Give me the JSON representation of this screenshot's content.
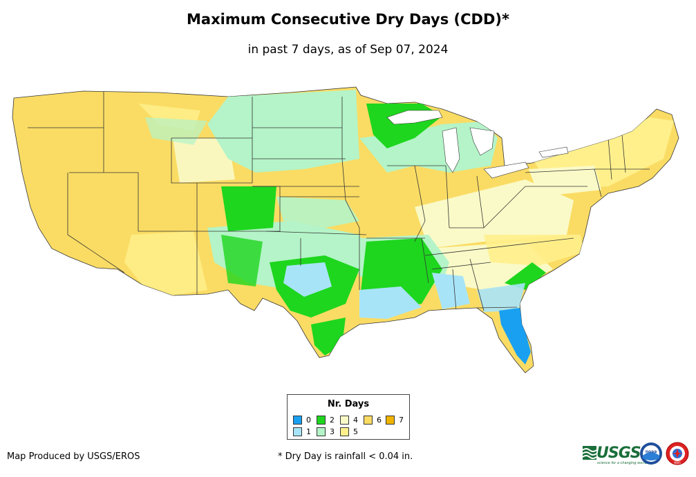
{
  "header": {
    "title": "Maximum Consecutive Dry Days (CDD)*",
    "subtitle": "in past 7 days, as of Sep 07, 2024"
  },
  "legend": {
    "title": "Nr. Days",
    "items": [
      {
        "label": "0",
        "color": "#1aa0f0"
      },
      {
        "label": "1",
        "color": "#a8e4f8"
      },
      {
        "label": "2",
        "color": "#1ed61e"
      },
      {
        "label": "3",
        "color": "#b4f4c8"
      },
      {
        "label": "4",
        "color": "#fafac8"
      },
      {
        "label": "5",
        "color": "#fff08c"
      },
      {
        "label": "6",
        "color": "#fadc64"
      },
      {
        "label": "7",
        "color": "#f0b400"
      }
    ]
  },
  "footer": {
    "credit": "Map Produced by USGS/EROS",
    "note": "* Dry Day is rainfall < 0.04 in."
  },
  "logos": {
    "usgs": "USGS",
    "usgs_tagline": "science for a changing world",
    "noaa": "noaa",
    "nws": "NWS"
  }
}
